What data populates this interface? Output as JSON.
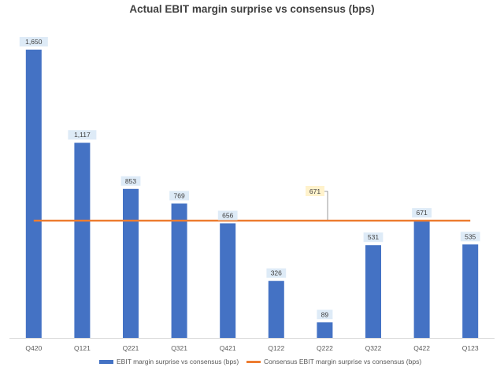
{
  "chart_data": {
    "type": "bar",
    "title": "Actual EBIT margin surprise vs consensus (bps)",
    "categories": [
      "Q420",
      "Q121",
      "Q221",
      "Q321",
      "Q421",
      "Q122",
      "Q222",
      "Q322",
      "Q422",
      "Q123"
    ],
    "series": [
      {
        "name": "EBIT margin surprise vs consensus (bps)",
        "type": "bar",
        "color": "#4472C4",
        "values": [
          1650,
          1117,
          853,
          769,
          656,
          326,
          89,
          531,
          671,
          535
        ],
        "labels": [
          "1,650",
          "1,117",
          "853",
          "769",
          "656",
          "326",
          "89",
          "531",
          "671",
          "535"
        ]
      },
      {
        "name": "Consensus EBIT margin surprise vs consensus (bps)",
        "type": "line",
        "color": "#ED7D31",
        "value": 671,
        "label": "671"
      }
    ],
    "ylim": [
      0,
      1700
    ],
    "grid": false,
    "legend_position": "bottom"
  }
}
